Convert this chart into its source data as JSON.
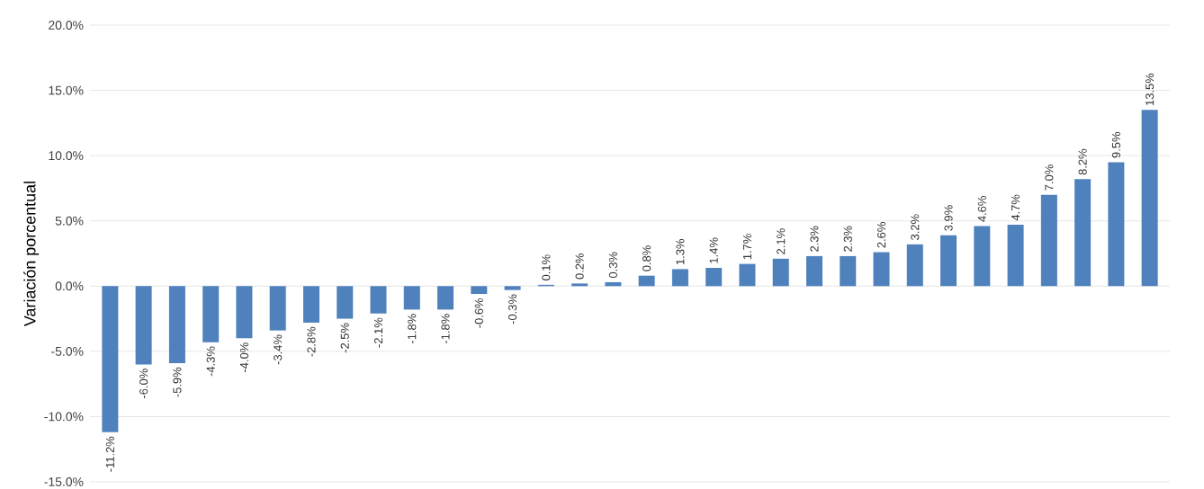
{
  "chart_data": {
    "type": "bar",
    "ylabel": "Variación porcentual",
    "categories": [
      null,
      null,
      null,
      null,
      null,
      null,
      null,
      null,
      null,
      null,
      null,
      null,
      null,
      null,
      null,
      null,
      null,
      null,
      null,
      null,
      null,
      null,
      null,
      null,
      null,
      null,
      null,
      null,
      null,
      null,
      null,
      null
    ],
    "values": [
      -11.2,
      -6.0,
      -5.9,
      -4.3,
      -4.0,
      -3.4,
      -2.8,
      -2.5,
      -2.1,
      -1.8,
      -1.8,
      -0.6,
      -0.3,
      0.1,
      0.2,
      0.3,
      0.8,
      1.3,
      1.4,
      1.7,
      2.1,
      2.3,
      2.3,
      2.6,
      3.2,
      3.9,
      4.6,
      4.7,
      7.0,
      8.2,
      9.5,
      13.5
    ],
    "value_labels": [
      "-11.2%",
      "-6.0%",
      "-5.9%",
      "-4.3%",
      "-4.0%",
      "-3.4%",
      "-2.8%",
      "-2.5%",
      "-2.1%",
      "-1.8%",
      "-1.8%",
      "-0.6%",
      "-0.3%",
      "0.1%",
      "0.2%",
      "0.3%",
      "0.8%",
      "1.3%",
      "1.4%",
      "1.7%",
      "2.1%",
      "2.3%",
      "2.3%",
      "2.6%",
      "3.2%",
      "3.9%",
      "4.6%",
      "4.7%",
      "7.0%",
      "8.2%",
      "9.5%",
      "13.5%"
    ],
    "color": "#4f81bd",
    "ylim": [
      -15,
      20
    ],
    "yticks": [
      {
        "value": -15,
        "label": "-15.0%"
      },
      {
        "value": -10,
        "label": "-10.0%"
      },
      {
        "value": -5,
        "label": "-5.0%"
      },
      {
        "value": 0,
        "label": "0.0%"
      },
      {
        "value": 5,
        "label": "5.0%"
      },
      {
        "value": 10,
        "label": "10.0%"
      },
      {
        "value": 15,
        "label": "15.0%"
      },
      {
        "value": 20,
        "label": "20.0%"
      }
    ],
    "grid": "y"
  }
}
